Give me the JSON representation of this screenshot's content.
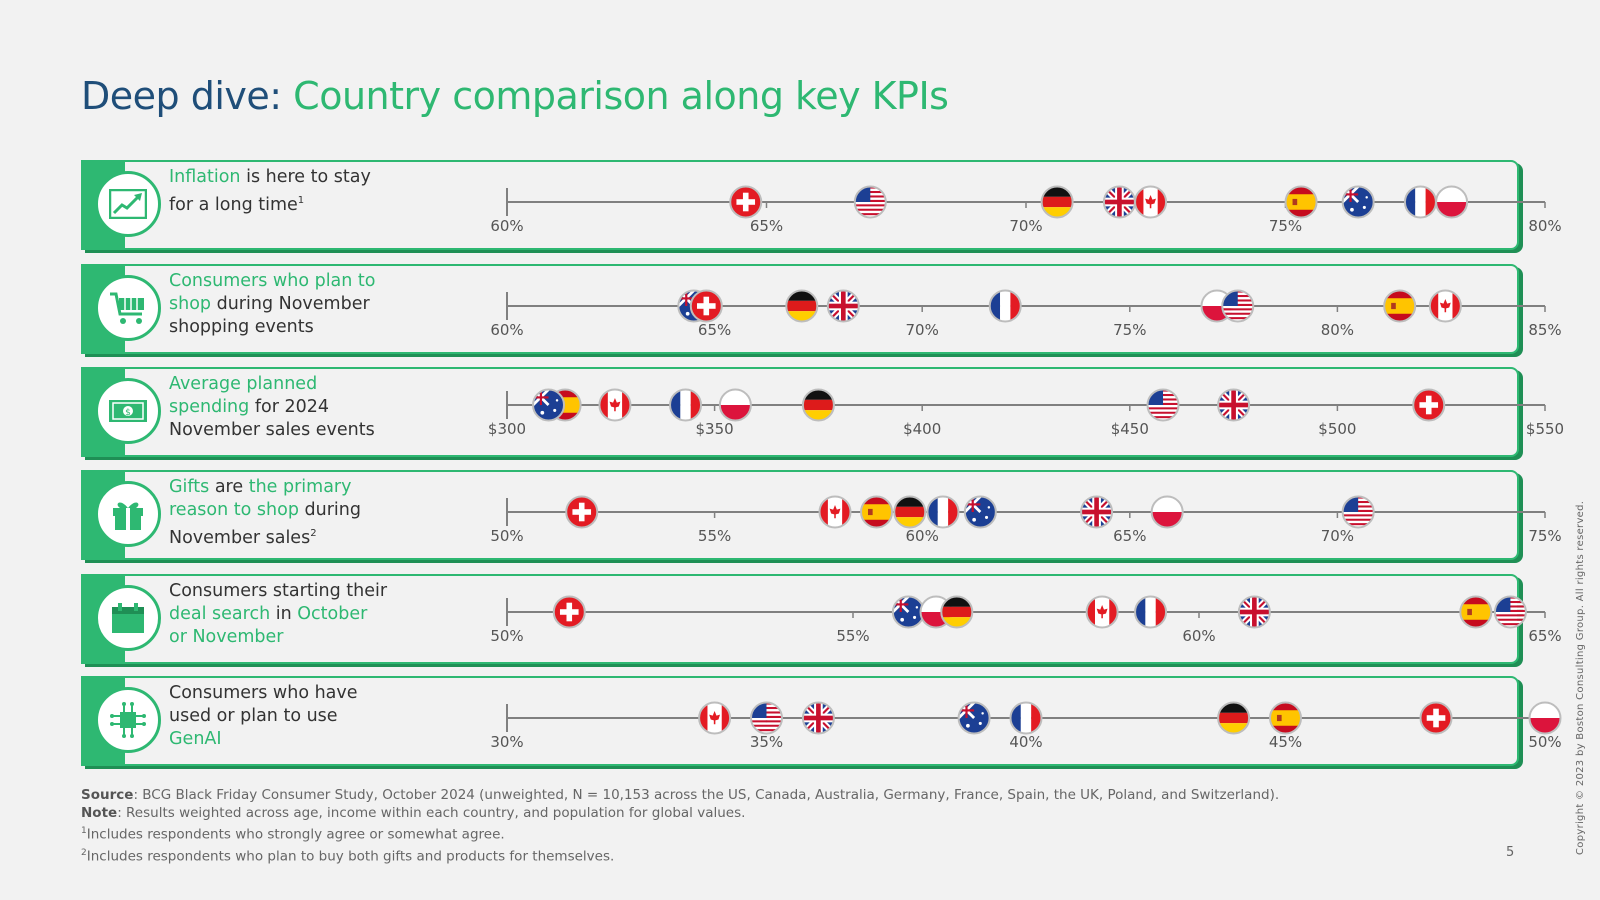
{
  "title": {
    "part1": "Deep dive:",
    "part2": "Country comparison along key KPIs"
  },
  "colors": {
    "accent": "#2eb872",
    "title_dark": "#1f4e79",
    "shadow": "#1f8f55"
  },
  "rows": [
    {
      "icon": "chart-growth-icon",
      "label": [
        [
          "Inflation",
          "g"
        ],
        [
          " is here to stay for a long time",
          ""
        ],
        [
          "1",
          "sup"
        ]
      ]
    },
    {
      "icon": "shopping-cart-icon",
      "label": [
        [
          "Consumers who plan to shop",
          "g"
        ],
        [
          " during November shopping events",
          ""
        ]
      ]
    },
    {
      "icon": "banknote-icon",
      "label": [
        [
          "Average planned spending",
          "g"
        ],
        [
          " for 2024 November sales events",
          ""
        ]
      ]
    },
    {
      "icon": "gift-icon",
      "label": [
        [
          "Gifts",
          "g"
        ],
        [
          " are ",
          ""
        ],
        [
          "the primary reason to shop",
          "g"
        ],
        [
          " during November sales",
          ""
        ],
        [
          "2",
          "sup"
        ]
      ]
    },
    {
      "icon": "calendar-icon",
      "label": [
        [
          "Consumers starting their ",
          ""
        ],
        [
          "deal search",
          "g"
        ],
        [
          " in ",
          ""
        ],
        [
          "October or November",
          "g"
        ]
      ]
    },
    {
      "icon": "ai-chip-icon",
      "label": [
        [
          "Consumers who have used or plan to use ",
          ""
        ],
        [
          "GenAI",
          "g"
        ]
      ]
    }
  ],
  "chart_data": [
    {
      "type": "scatter",
      "unit": "%",
      "xlim": [
        60,
        80
      ],
      "ticks": [
        60,
        65,
        70,
        75,
        80
      ],
      "tick_labels": [
        "60%",
        "65%",
        "70%",
        "75%",
        "80%"
      ],
      "points": [
        {
          "country": "CH",
          "value": 64.6
        },
        {
          "country": "US",
          "value": 67.0
        },
        {
          "country": "DE",
          "value": 70.6
        },
        {
          "country": "UK",
          "value": 71.8
        },
        {
          "country": "CA",
          "value": 72.4
        },
        {
          "country": "ES",
          "value": 75.3
        },
        {
          "country": "AU",
          "value": 76.4
        },
        {
          "country": "FR",
          "value": 77.6
        },
        {
          "country": "PL",
          "value": 78.2
        }
      ]
    },
    {
      "type": "scatter",
      "unit": "%",
      "xlim": [
        60,
        85
      ],
      "ticks": [
        60,
        65,
        70,
        75,
        80,
        85
      ],
      "tick_labels": [
        "60%",
        "65%",
        "70%",
        "75%",
        "80%",
        "85%"
      ],
      "points": [
        {
          "country": "AU",
          "value": 64.5
        },
        {
          "country": "CH",
          "value": 64.8
        },
        {
          "country": "DE",
          "value": 67.1
        },
        {
          "country": "UK",
          "value": 68.1
        },
        {
          "country": "FR",
          "value": 72.0
        },
        {
          "country": "PL",
          "value": 77.1
        },
        {
          "country": "US",
          "value": 77.6
        },
        {
          "country": "ES",
          "value": 81.5
        },
        {
          "country": "CA",
          "value": 82.6
        }
      ]
    },
    {
      "type": "scatter",
      "unit": "$",
      "xlim": [
        300,
        550
      ],
      "ticks": [
        300,
        350,
        400,
        450,
        500,
        550
      ],
      "tick_labels": [
        "$300",
        "$350",
        "$400",
        "$450",
        "$500",
        "$550"
      ],
      "points": [
        {
          "country": "ES",
          "value": 314
        },
        {
          "country": "AU",
          "value": 310
        },
        {
          "country": "CA",
          "value": 326
        },
        {
          "country": "FR",
          "value": 343
        },
        {
          "country": "PL",
          "value": 355
        },
        {
          "country": "DE",
          "value": 375
        },
        {
          "country": "US",
          "value": 458
        },
        {
          "country": "UK",
          "value": 475
        },
        {
          "country": "CH",
          "value": 522
        }
      ]
    },
    {
      "type": "scatter",
      "unit": "%",
      "xlim": [
        50,
        75
      ],
      "ticks": [
        50,
        55,
        60,
        65,
        70,
        75
      ],
      "tick_labels": [
        "50%",
        "55%",
        "60%",
        "65%",
        "70%",
        "75%"
      ],
      "points": [
        {
          "country": "CH",
          "value": 51.8
        },
        {
          "country": "CA",
          "value": 57.9
        },
        {
          "country": "ES",
          "value": 58.9
        },
        {
          "country": "DE",
          "value": 59.7
        },
        {
          "country": "FR",
          "value": 60.5
        },
        {
          "country": "AU",
          "value": 61.4
        },
        {
          "country": "UK",
          "value": 64.2
        },
        {
          "country": "PL",
          "value": 65.9
        },
        {
          "country": "US",
          "value": 70.5
        }
      ]
    },
    {
      "type": "scatter",
      "unit": "%",
      "xlim": [
        50,
        65
      ],
      "ticks": [
        50,
        55,
        60,
        65
      ],
      "tick_labels": [
        "50%",
        "55%",
        "60%",
        "65%"
      ],
      "points": [
        {
          "country": "CH",
          "value": 50.9
        },
        {
          "country": "AU",
          "value": 55.8
        },
        {
          "country": "PL",
          "value": 56.2
        },
        {
          "country": "DE",
          "value": 56.5
        },
        {
          "country": "CA",
          "value": 58.6
        },
        {
          "country": "FR",
          "value": 59.3
        },
        {
          "country": "UK",
          "value": 60.8
        },
        {
          "country": "ES",
          "value": 64.0
        },
        {
          "country": "US",
          "value": 64.5
        }
      ]
    },
    {
      "type": "scatter",
      "unit": "%",
      "xlim": [
        30,
        50
      ],
      "ticks": [
        30,
        35,
        40,
        45,
        50
      ],
      "tick_labels": [
        "30%",
        "35%",
        "40%",
        "45%",
        "50%"
      ],
      "points": [
        {
          "country": "CA",
          "value": 34.0
        },
        {
          "country": "US",
          "value": 35.0
        },
        {
          "country": "UK",
          "value": 36.0
        },
        {
          "country": "AU",
          "value": 39.0
        },
        {
          "country": "FR",
          "value": 40.0
        },
        {
          "country": "DE",
          "value": 44.0
        },
        {
          "country": "ES",
          "value": 45.0
        },
        {
          "country": "CH",
          "value": 47.9
        },
        {
          "country": "PL",
          "value": 50.0
        }
      ]
    }
  ],
  "footer": {
    "source_label": "Source",
    "source_text": ": BCG Black Friday Consumer Study, October 2024 (unweighted, N = 10,153 across the US, Canada, Australia, Germany, France, Spain, the UK, Poland, and Switzerland).",
    "note_label": "Note",
    "note_text": ": Results weighted across age, income within each country, and population for global values.",
    "fn1_mark": "1",
    "fn1": "Includes respondents who strongly agree or somewhat agree.",
    "fn2_mark": "2",
    "fn2": "Includes respondents who plan to buy both gifts and products for themselves."
  },
  "page_number": "5",
  "copyright": "Copyright © 2023 by Boston Consulting Group. All rights reserved."
}
